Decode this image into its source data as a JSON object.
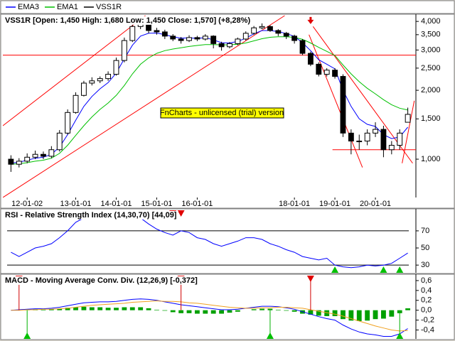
{
  "chart_data": [
    {
      "type": "candlestick",
      "title": "VSS1R [Open: 1,450  High: 1,680  Low: 1,450  Close: 1,570]  (+8,28%)",
      "watermark": "FnCharts - unlicensed (trial) version",
      "log": true,
      "grid": false,
      "candles": {
        "name": "VSS1R",
        "color": "#000000",
        "open": [
          1000,
          950,
          980,
          1020,
          1050,
          1030,
          1100,
          1300,
          1600,
          1900,
          2150,
          2200,
          2250,
          2350,
          2700,
          3300,
          3800,
          3900,
          3650,
          3600,
          3450,
          3350,
          3300,
          3400,
          3350,
          3450,
          3200,
          3100,
          3200,
          3350,
          3550,
          3750,
          3800,
          3650,
          3550,
          3450,
          3300,
          2900,
          2600,
          2350,
          2450,
          2300,
          1300,
          1200,
          1200,
          1300,
          1350,
          1100,
          1150,
          1450
        ],
        "high": [
          1040,
          1010,
          1060,
          1090,
          1080,
          1140,
          1340,
          1650,
          1960,
          2200,
          2280,
          2300,
          2420,
          2780,
          3400,
          3900,
          4050,
          3950,
          3750,
          3680,
          3520,
          3420,
          3480,
          3460,
          3520,
          3480,
          3260,
          3250,
          3400,
          3620,
          3820,
          3920,
          3850,
          3700,
          3600,
          3500,
          3350,
          2950,
          2650,
          2500,
          2500,
          2350,
          1350,
          1280,
          1350,
          1450,
          1400,
          1200,
          1350,
          1680
        ],
        "low": [
          880,
          920,
          960,
          1000,
          1000,
          1010,
          1080,
          1280,
          1580,
          1880,
          2100,
          2150,
          2200,
          2320,
          2650,
          3250,
          3700,
          3550,
          3500,
          3350,
          3280,
          3200,
          3250,
          3280,
          3300,
          3050,
          2980,
          3050,
          3150,
          3300,
          3500,
          3700,
          3600,
          3450,
          3350,
          3200,
          2850,
          2550,
          2300,
          2300,
          2250,
          1250,
          1050,
          1100,
          1150,
          1250,
          1020,
          1050,
          1100,
          1450
        ],
        "close": [
          950,
          980,
          1020,
          1050,
          1030,
          1100,
          1300,
          1600,
          1900,
          2150,
          2200,
          2250,
          2350,
          2700,
          3300,
          3800,
          3900,
          3650,
          3600,
          3450,
          3350,
          3300,
          3400,
          3350,
          3450,
          3200,
          3100,
          3200,
          3350,
          3550,
          3750,
          3800,
          3650,
          3550,
          3450,
          3300,
          2900,
          2600,
          2350,
          2450,
          2300,
          1300,
          1200,
          1200,
          1300,
          1350,
          1100,
          1150,
          1300,
          1570
        ]
      },
      "series": [
        {
          "name": "EMA3",
          "color": "#0000ff",
          "values": [
            960,
            970,
            990,
            1010,
            1020,
            1050,
            1130,
            1280,
            1480,
            1700,
            1880,
            2030,
            2160,
            2380,
            2750,
            3150,
            3450,
            3550,
            3560,
            3500,
            3430,
            3380,
            3390,
            3370,
            3400,
            3320,
            3230,
            3220,
            3270,
            3380,
            3530,
            3650,
            3650,
            3610,
            3540,
            3440,
            3230,
            2980,
            2720,
            2600,
            2480,
            2000,
            1700,
            1500,
            1420,
            1390,
            1280,
            1230,
            1250,
            1380
          ]
        },
        {
          "name": "EMA1",
          "color": "#00c000",
          "values": [
            950,
            955,
            965,
            980,
            990,
            1010,
            1060,
            1150,
            1270,
            1400,
            1530,
            1650,
            1760,
            1900,
            2100,
            2360,
            2600,
            2770,
            2900,
            2980,
            3030,
            3070,
            3110,
            3140,
            3170,
            3170,
            3160,
            3160,
            3180,
            3220,
            3290,
            3360,
            3410,
            3430,
            3430,
            3410,
            3340,
            3220,
            3080,
            2960,
            2840,
            2580,
            2360,
            2180,
            2040,
            1930,
            1820,
            1730,
            1670,
            1640
          ]
        }
      ],
      "trendline_color": "#ff0000",
      "trendlines": [
        {
          "x": [
            -1,
            16.6
          ],
          "y": [
            1400,
            4240
          ]
        },
        {
          "x": [
            -1,
            33.8
          ],
          "y": [
            680,
            4240
          ]
        },
        {
          "x": [
            36.8,
            43.4
          ],
          "y": [
            3500,
            920
          ]
        },
        {
          "x": [
            37.3,
            49.6
          ],
          "y": [
            3800,
            960
          ]
        },
        {
          "x": [
            48.3,
            49.8
          ],
          "y": [
            960,
            1800
          ]
        },
        {
          "x": [
            -1,
            50
          ],
          "y": [
            2850,
            2850
          ]
        },
        {
          "x": [
            39.7,
            50
          ],
          "y": [
            1100,
            1100
          ]
        }
      ],
      "arrow": {
        "x": 37,
        "y": 3950
      },
      "xlim": [
        -1,
        50
      ],
      "xticks": [
        {
          "value": 2,
          "label": "12-01-02"
        },
        {
          "value": 8,
          "label": "13-01-01"
        },
        {
          "value": 13,
          "label": "14-01-01"
        },
        {
          "value": 18,
          "label": "15-01-01"
        },
        {
          "value": 23,
          "label": "16-01-01"
        },
        {
          "value": 35,
          "label": "18-01-01"
        },
        {
          "value": 40,
          "label": "19-01-01"
        },
        {
          "value": 45,
          "label": "20-01-01"
        }
      ],
      "ylim": [
        680,
        4240
      ],
      "yticks": [
        {
          "value": 1000,
          "label": "1,000"
        },
        {
          "value": 1500,
          "label": "1,500"
        },
        {
          "value": 2000,
          "label": "2,000"
        },
        {
          "value": 2500,
          "label": "2,500"
        },
        {
          "value": 3000,
          "label": "3,000"
        },
        {
          "value": 3500,
          "label": "3,500"
        },
        {
          "value": 4000,
          "label": "4,000"
        }
      ]
    },
    {
      "type": "line",
      "title": "RSI - Relative Strength Index (14,30,70) [44,09]",
      "log": false,
      "grid": false,
      "series": [
        {
          "name": "RSI",
          "color": "#0000ff",
          "values": [
            45,
            40,
            45,
            50,
            52,
            55,
            62,
            70,
            80,
            85,
            88,
            90,
            85,
            88,
            92,
            90,
            85,
            78,
            72,
            68,
            65,
            70,
            68,
            62,
            60,
            55,
            52,
            55,
            58,
            62,
            62,
            60,
            55,
            52,
            48,
            45,
            40,
            38,
            36,
            38,
            30,
            28,
            27,
            28,
            30,
            29,
            30,
            32,
            38,
            44.09
          ]
        }
      ],
      "levels": [
        30,
        70
      ],
      "buy": [
        40,
        46,
        48
      ],
      "sell": [
        20,
        21
      ],
      "xlim": [
        -1,
        50
      ],
      "ylim": [
        21,
        94
      ],
      "yticks": [
        30,
        50,
        70
      ]
    },
    {
      "type": "macd",
      "title": "MACD - Moving Average Conv. Div. (12,26,9) [-0,372]",
      "log": false,
      "grid": false,
      "series": [
        {
          "name": "MACD",
          "color": "#0000ff",
          "values": [
            0,
            0.01,
            0.02,
            0.03,
            0.03,
            0.04,
            0.06,
            0.09,
            0.12,
            0.15,
            0.16,
            0.17,
            0.17,
            0.18,
            0.2,
            0.22,
            0.23,
            0.22,
            0.2,
            0.17,
            0.14,
            0.11,
            0.09,
            0.07,
            0.05,
            0.03,
            0.01,
            0.01,
            0.02,
            0.04,
            0.06,
            0.08,
            0.08,
            0.07,
            0.05,
            0.02,
            -0.03,
            -0.08,
            -0.13,
            -0.17,
            -0.2,
            -0.3,
            -0.38,
            -0.44,
            -0.48,
            -0.5,
            -0.53,
            -0.53,
            -0.48,
            -0.372
          ]
        },
        {
          "name": "Signal",
          "color": "#f0a020",
          "values": [
            0,
            0,
            0.01,
            0.01,
            0.02,
            0.02,
            0.03,
            0.04,
            0.06,
            0.08,
            0.1,
            0.11,
            0.12,
            0.13,
            0.14,
            0.16,
            0.17,
            0.18,
            0.19,
            0.18,
            0.18,
            0.17,
            0.15,
            0.14,
            0.12,
            0.1,
            0.08,
            0.06,
            0.05,
            0.04,
            0.04,
            0.05,
            0.05,
            0.06,
            0.06,
            0.05,
            0.04,
            0.01,
            -0.02,
            -0.05,
            -0.08,
            -0.12,
            -0.17,
            -0.22,
            -0.27,
            -0.32,
            -0.36,
            -0.4,
            -0.42,
            -0.41
          ]
        }
      ],
      "histogram": {
        "color": "#00a000",
        "values": [
          0,
          0.01,
          0.01,
          0.02,
          0.01,
          0.02,
          0.03,
          0.05,
          0.06,
          0.07,
          0.06,
          0.06,
          0.05,
          0.05,
          0.06,
          0.06,
          0.06,
          0.04,
          0.01,
          -0.01,
          -0.04,
          -0.06,
          -0.06,
          -0.07,
          -0.07,
          -0.07,
          -0.07,
          -0.05,
          -0.03,
          0,
          0.02,
          0.03,
          0.03,
          0.01,
          -0.01,
          -0.03,
          -0.07,
          -0.09,
          -0.11,
          -0.12,
          -0.12,
          -0.18,
          -0.21,
          -0.22,
          -0.21,
          -0.18,
          -0.17,
          -0.13,
          -0.06,
          0.038
        ]
      },
      "buy": [
        2,
        32,
        48
      ],
      "sell": [
        1,
        21,
        37
      ],
      "xlim": [
        -1,
        50
      ],
      "ylim": [
        -0.58,
        0.7
      ],
      "yticks": [
        {
          "value": 0.6,
          "label": "0,6"
        },
        {
          "value": 0.4,
          "label": "0,4"
        },
        {
          "value": 0.2,
          "label": "0,2"
        },
        {
          "value": 0,
          "label": "0,0"
        },
        {
          "value": -0.2,
          "label": "-0,2"
        },
        {
          "value": -0.4,
          "label": "-0,4"
        }
      ]
    }
  ]
}
